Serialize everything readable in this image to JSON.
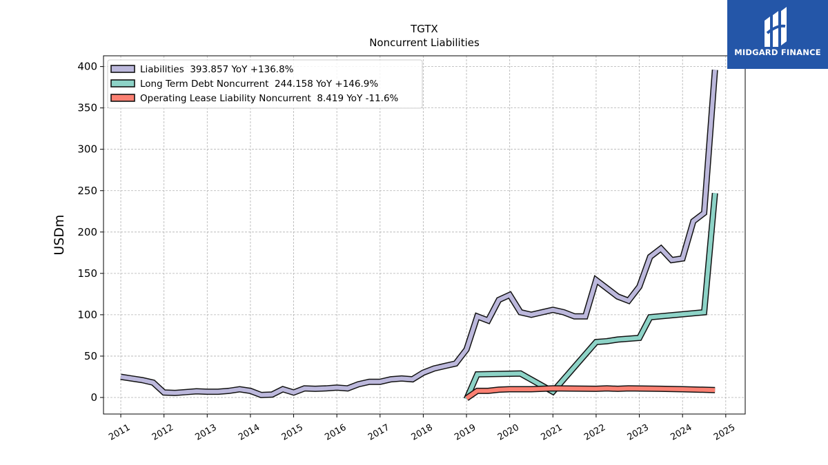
{
  "chart_data": {
    "type": "line",
    "title": "TGTX",
    "subtitle": "Noncurrent  Liabilities",
    "ylabel": "USDm",
    "xlabel": "",
    "xlim": [
      2010.6,
      2025.45
    ],
    "ylim": [
      -20,
      413
    ],
    "yticks": [
      0,
      50,
      100,
      150,
      200,
      250,
      300,
      350,
      400
    ],
    "xticks": [
      2011,
      2012,
      2013,
      2014,
      2015,
      2016,
      2017,
      2018,
      2019,
      2020,
      2021,
      2022,
      2023,
      2024,
      2025
    ],
    "grid": true,
    "legend_position": "top-left",
    "series": [
      {
        "name": "Liabilities  393.857 YoY +136.8%",
        "color": "#bcb8dc",
        "points": [
          [
            2011.0,
            25
          ],
          [
            2011.25,
            23
          ],
          [
            2011.5,
            21
          ],
          [
            2011.75,
            18
          ],
          [
            2012.0,
            6
          ],
          [
            2012.25,
            5.5
          ],
          [
            2012.5,
            6.5
          ],
          [
            2012.75,
            7.5
          ],
          [
            2013.0,
            7
          ],
          [
            2013.25,
            7
          ],
          [
            2013.5,
            8
          ],
          [
            2013.75,
            10
          ],
          [
            2014.0,
            8
          ],
          [
            2014.25,
            3
          ],
          [
            2014.5,
            3.5
          ],
          [
            2014.75,
            10
          ],
          [
            2015.0,
            6
          ],
          [
            2015.25,
            11
          ],
          [
            2015.5,
            10.5
          ],
          [
            2015.75,
            11
          ],
          [
            2016.0,
            12
          ],
          [
            2016.25,
            11
          ],
          [
            2016.5,
            16
          ],
          [
            2016.75,
            19
          ],
          [
            2017.0,
            19
          ],
          [
            2017.25,
            22
          ],
          [
            2017.5,
            23
          ],
          [
            2017.75,
            22
          ],
          [
            2018.0,
            30
          ],
          [
            2018.25,
            35
          ],
          [
            2018.5,
            38
          ],
          [
            2018.75,
            41
          ],
          [
            2019.0,
            58
          ],
          [
            2019.25,
            98
          ],
          [
            2019.5,
            93
          ],
          [
            2019.75,
            118
          ],
          [
            2020.0,
            124
          ],
          [
            2020.25,
            103
          ],
          [
            2020.5,
            100
          ],
          [
            2020.75,
            103
          ],
          [
            2021.0,
            106
          ],
          [
            2021.25,
            103
          ],
          [
            2021.5,
            98
          ],
          [
            2021.75,
            98
          ],
          [
            2022.0,
            142
          ],
          [
            2022.25,
            132
          ],
          [
            2022.5,
            122
          ],
          [
            2022.75,
            117
          ],
          [
            2023.0,
            134
          ],
          [
            2023.25,
            170
          ],
          [
            2023.5,
            180
          ],
          [
            2023.75,
            166
          ],
          [
            2024.0,
            168
          ],
          [
            2024.25,
            213
          ],
          [
            2024.5,
            223
          ],
          [
            2024.75,
            396
          ]
        ]
      },
      {
        "name": "Long Term Debt Noncurrent  244.158 YoY +146.9%",
        "color": "#8dd3c7",
        "points": [
          [
            2019.0,
            -2
          ],
          [
            2019.25,
            28
          ],
          [
            2020.25,
            29
          ],
          [
            2021.0,
            7
          ],
          [
            2022.0,
            67
          ],
          [
            2022.25,
            68
          ],
          [
            2022.5,
            70
          ],
          [
            2023.0,
            72
          ],
          [
            2023.25,
            97
          ],
          [
            2024.5,
            103
          ],
          [
            2024.75,
            247
          ]
        ]
      },
      {
        "name": "Operating Lease Liability Noncurrent  8.419 YoY -11.6%",
        "color": "#fb8072",
        "points": [
          [
            2019.0,
            -1
          ],
          [
            2019.25,
            8
          ],
          [
            2019.5,
            8
          ],
          [
            2019.75,
            9.5
          ],
          [
            2020.0,
            10
          ],
          [
            2020.5,
            10
          ],
          [
            2021.0,
            11
          ],
          [
            2022.0,
            10.5
          ],
          [
            2022.25,
            11
          ],
          [
            2022.5,
            10.5
          ],
          [
            2022.75,
            11
          ],
          [
            2023.5,
            10.5
          ],
          [
            2024.0,
            10
          ],
          [
            2024.75,
            9
          ]
        ]
      }
    ]
  },
  "logo": {
    "text": "MIDGARD FINANCE",
    "color": "#2456a8"
  }
}
